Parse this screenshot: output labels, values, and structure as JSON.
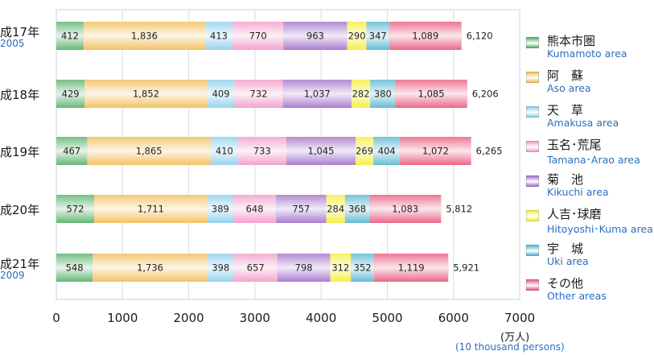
{
  "chart_data": {
    "type": "bar",
    "orientation": "horizontal",
    "stacked": true,
    "categories": [
      {
        "label": "成17年",
        "year": "2005"
      },
      {
        "label": "成18年",
        "year": ""
      },
      {
        "label": "成19年",
        "year": ""
      },
      {
        "label": "成20年",
        "year": ""
      },
      {
        "label": "成21年",
        "year": "2009"
      }
    ],
    "series": [
      {
        "name_jp": "熊本市圏",
        "name_en": "Kumamoto area",
        "color": "#5cb36e",
        "values": [
          412,
          429,
          467,
          572,
          548
        ]
      },
      {
        "name_jp": "阿　蘇",
        "name_en": "Aso area",
        "color": "#f2bf5c",
        "values": [
          1836,
          1852,
          1865,
          1711,
          1736
        ]
      },
      {
        "name_jp": "天　草",
        "name_en": "Amakusa area",
        "color": "#8fd0ec",
        "values": [
          413,
          409,
          410,
          389,
          398
        ]
      },
      {
        "name_jp": "玉名･荒尾",
        "name_en": "Tamana･Arao area",
        "color": "#f29ecb",
        "values": [
          770,
          732,
          733,
          648,
          657
        ]
      },
      {
        "name_jp": "菊　池",
        "name_en": "Kikuchi area",
        "color": "#a577cc",
        "values": [
          963,
          1037,
          1045,
          757,
          798
        ]
      },
      {
        "name_jp": "人吉･球磨",
        "name_en": "Hitoyoshi･Kuma area",
        "color": "#f5ee3c",
        "values": [
          290,
          282,
          269,
          284,
          312
        ]
      },
      {
        "name_jp": "宇　城",
        "name_en": "Uki area",
        "color": "#5fb8d2",
        "values": [
          347,
          380,
          404,
          368,
          352
        ]
      },
      {
        "name_jp": "その他",
        "name_en": "Other areas",
        "color": "#ea5f82",
        "values": [
          1089,
          1085,
          1072,
          1083,
          1119
        ]
      }
    ],
    "totals": [
      6120,
      6206,
      6265,
      5812,
      5921
    ],
    "xlim": [
      0,
      7000
    ],
    "xticks": [
      0,
      1000,
      2000,
      3000,
      4000,
      5000,
      6000,
      7000
    ],
    "unit_jp": "(万人)",
    "unit_en": "(10 thousand persons)",
    "legend_position": "right",
    "grid": true
  }
}
